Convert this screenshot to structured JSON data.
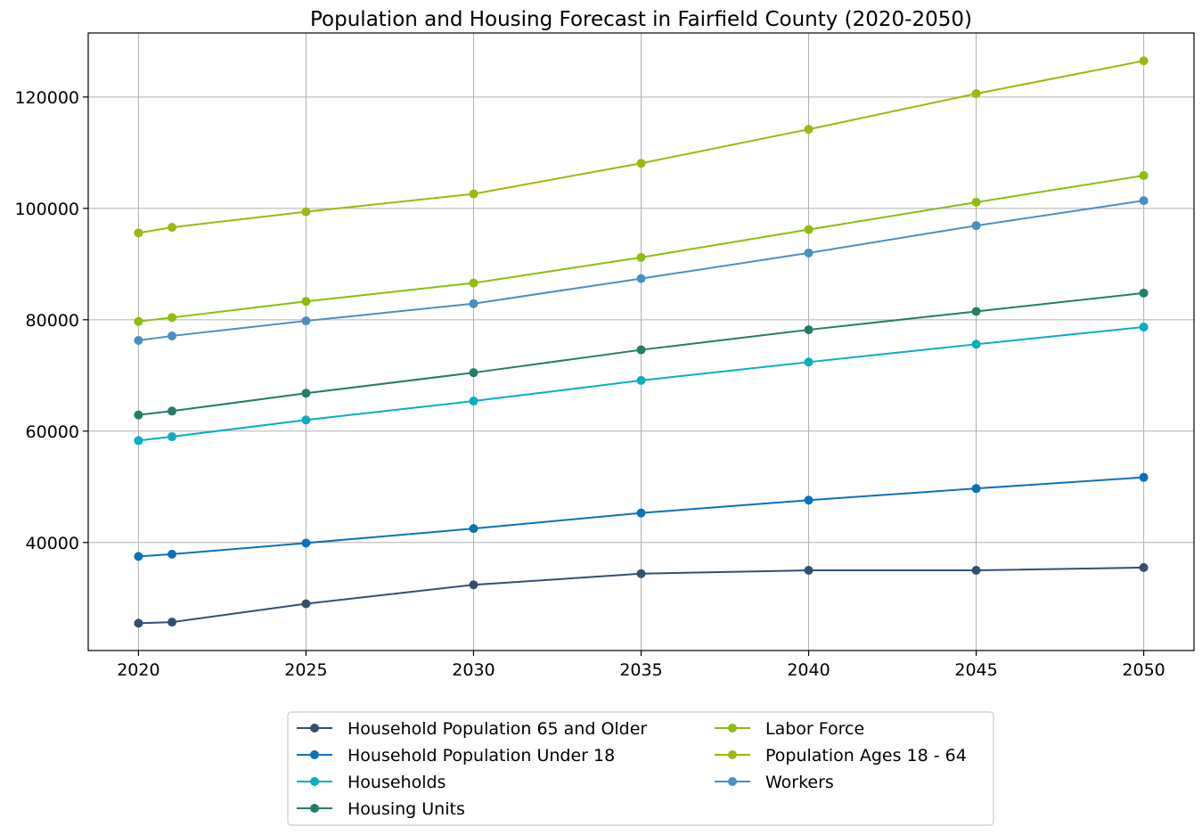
{
  "chart_data": {
    "type": "line",
    "title": "Population and Housing Forecast in Fairfield County (2020-2050)",
    "xlabel": "",
    "ylabel": "",
    "x": [
      2020,
      2021,
      2025,
      2030,
      2035,
      2040,
      2045,
      2050
    ],
    "xticks": [
      2020,
      2025,
      2030,
      2035,
      2040,
      2045,
      2050
    ],
    "xtick_labels": [
      "2020",
      "2025",
      "2030",
      "2035",
      "2040",
      "2045",
      "2050"
    ],
    "xlim": [
      2018.5,
      2051.5
    ],
    "yticks": [
      40000,
      60000,
      80000,
      100000,
      120000
    ],
    "ytick_labels": [
      "40000",
      "60000",
      "80000",
      "100000",
      "120000"
    ],
    "ylim": [
      20600,
      131500
    ],
    "grid": true,
    "legend_position": "bottom-center-outside",
    "series": [
      {
        "name": "Household Population 65 and Older",
        "color": "#34506e",
        "values": [
          25500,
          25700,
          29000,
          32400,
          34400,
          35000,
          35000,
          35500
        ]
      },
      {
        "name": "Household Population Under 18",
        "color": "#0a72b8",
        "values": [
          37500,
          37900,
          39900,
          42500,
          45300,
          47600,
          49700,
          51700
        ]
      },
      {
        "name": "Households",
        "color": "#08aec0",
        "values": [
          58300,
          59000,
          62000,
          65400,
          69100,
          72400,
          75600,
          78700
        ]
      },
      {
        "name": "Housing Units",
        "color": "#237e68",
        "values": [
          62900,
          63600,
          66800,
          70500,
          74600,
          78200,
          81500,
          84800
        ]
      },
      {
        "name": "Labor Force",
        "color": "#8ebd0c",
        "values": [
          79700,
          80400,
          83300,
          86600,
          91200,
          96200,
          101100,
          105900
        ]
      },
      {
        "name": "Population Ages 18 - 64",
        "color": "#9aba0f",
        "values": [
          95600,
          96600,
          99400,
          102600,
          108100,
          114200,
          120600,
          126500
        ]
      },
      {
        "name": "Workers",
        "color": "#4a8fc4",
        "values": [
          76300,
          77100,
          79800,
          82900,
          87400,
          92000,
          96900,
          101400
        ]
      }
    ]
  }
}
